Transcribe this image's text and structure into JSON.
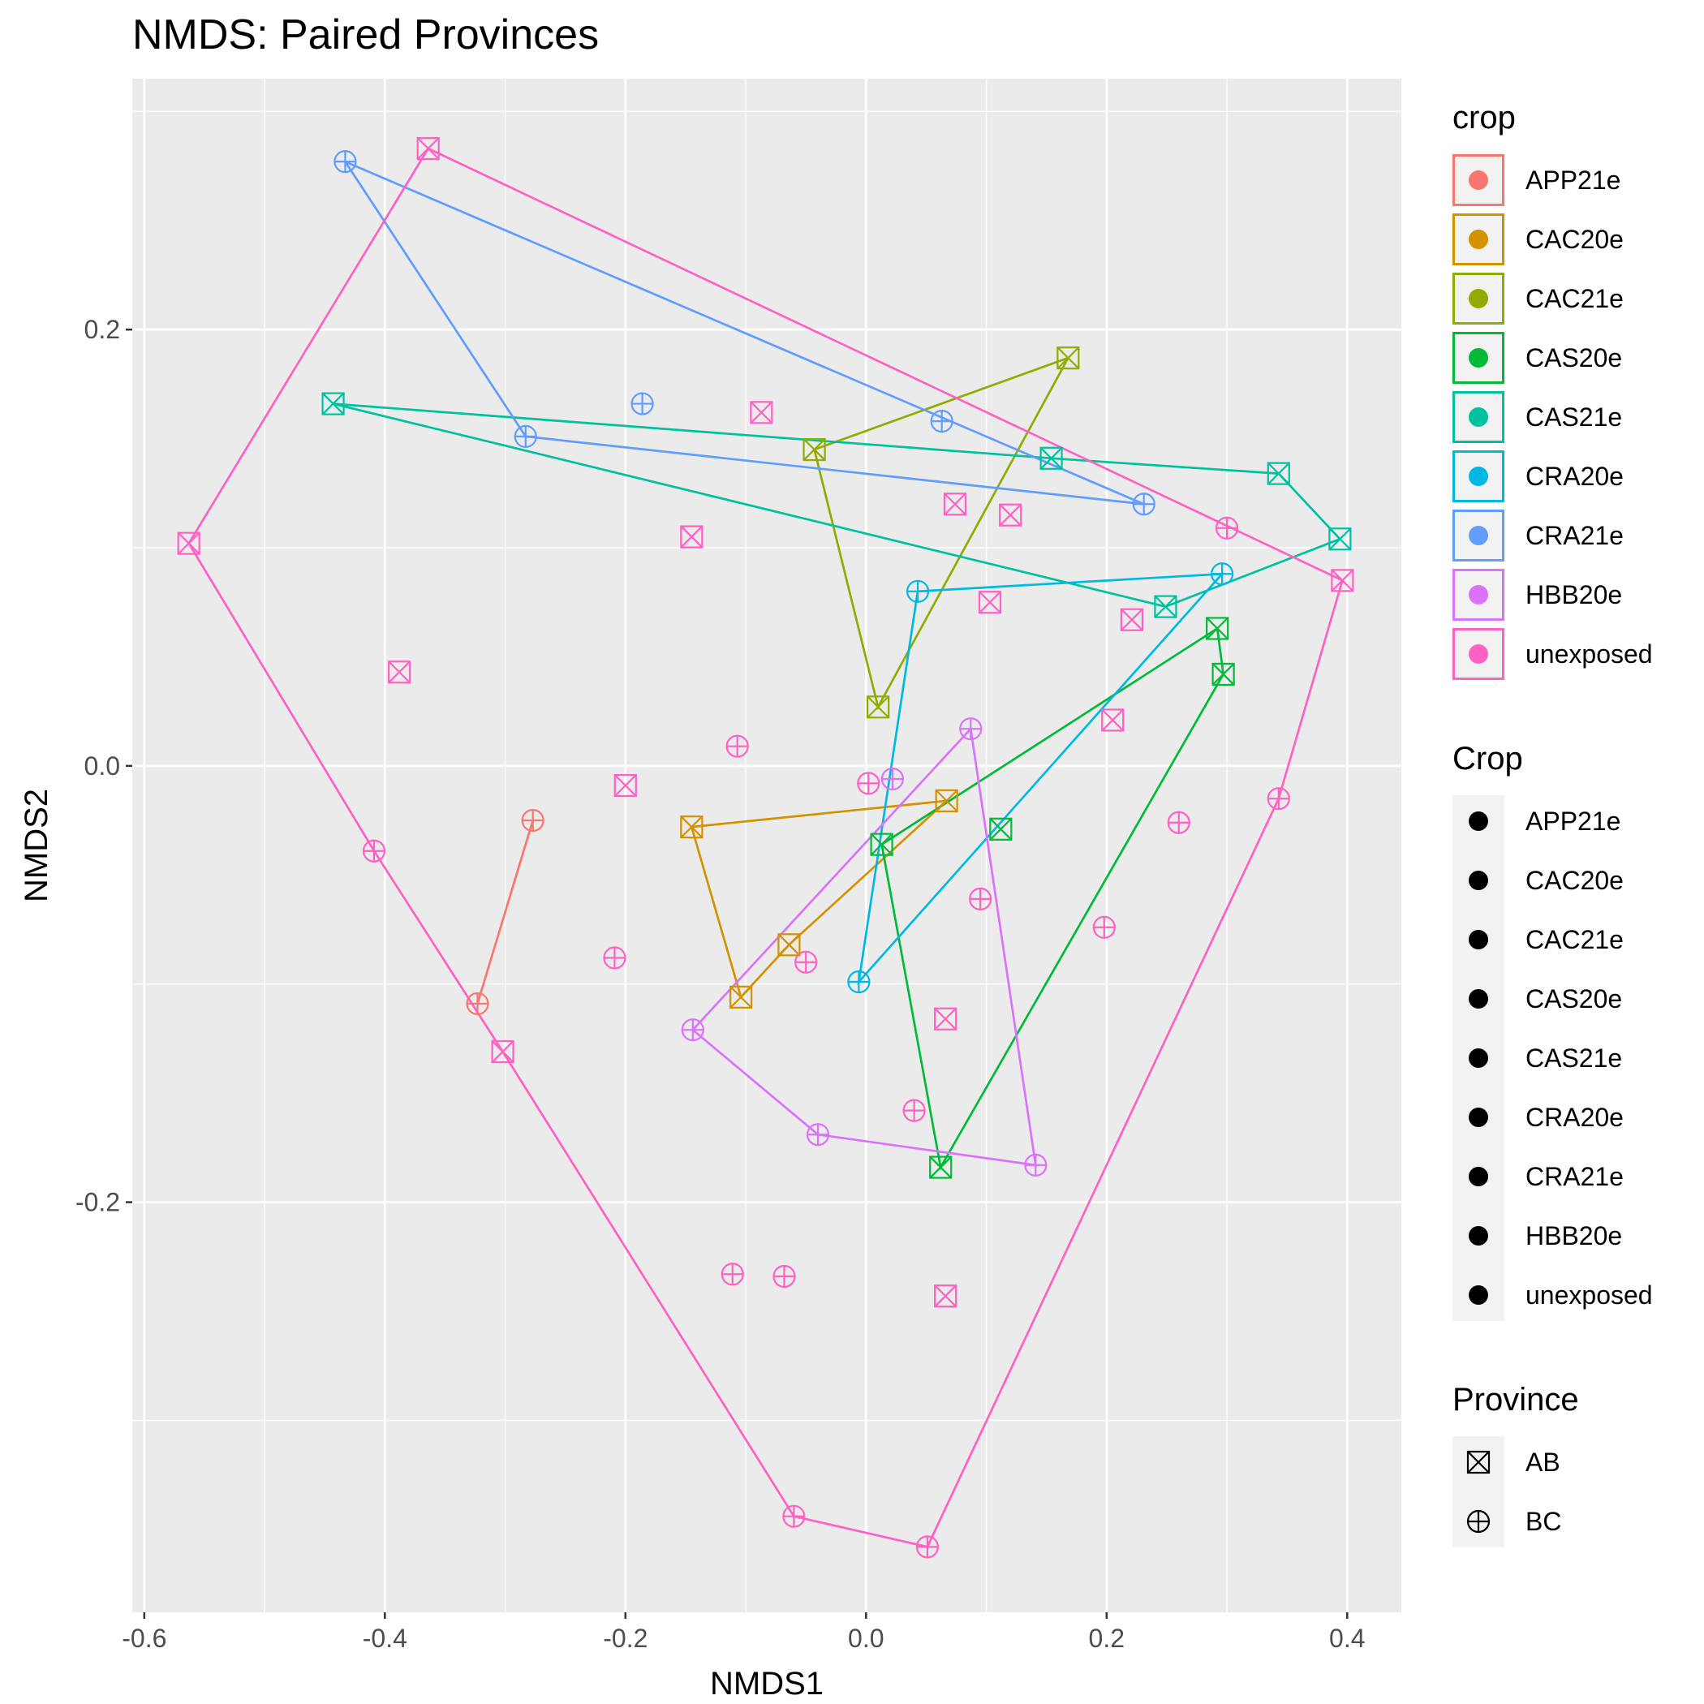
{
  "chart_data": {
    "type": "scatter",
    "title": "NMDS: Paired Provinces",
    "xlabel": "NMDS1",
    "ylabel": "NMDS2",
    "xlim": [
      -0.61,
      0.445
    ],
    "ylim": [
      -0.388,
      0.315
    ],
    "x_ticks": [
      -0.6,
      -0.4,
      -0.2,
      0.0,
      0.2,
      0.4
    ],
    "x_tick_labels": [
      "-0.6",
      "-0.4",
      "-0.2",
      "0.0",
      "0.2",
      "0.4"
    ],
    "y_ticks": [
      -0.2,
      0.0,
      0.2
    ],
    "y_tick_labels": [
      "-0.2",
      "0.0",
      "0.2"
    ],
    "grid": true,
    "legend_position": "right",
    "colors": {
      "APP21e": "#F8766D",
      "CAC20e": "#D39200",
      "CAC21e": "#93AA00",
      "CAS20e": "#00BA38",
      "CAS21e": "#00C19F",
      "CRA20e": "#00B9E3",
      "CRA21e": "#619CFF",
      "HBB20e": "#DB72FB",
      "unexposed": "#FF61C3"
    },
    "series": [
      {
        "name": "APP21e",
        "points": [
          {
            "x": -0.277,
            "y": -0.025,
            "province": "BC"
          },
          {
            "x": -0.323,
            "y": -0.109,
            "province": "BC"
          }
        ],
        "hull": [
          [
            -0.277,
            -0.025
          ],
          [
            -0.323,
            -0.109
          ]
        ]
      },
      {
        "name": "CAC20e",
        "points": [
          {
            "x": 0.067,
            "y": -0.016,
            "province": "AB"
          },
          {
            "x": -0.145,
            "y": -0.028,
            "province": "AB"
          },
          {
            "x": -0.104,
            "y": -0.106,
            "province": "AB"
          },
          {
            "x": -0.064,
            "y": -0.082,
            "province": "AB"
          }
        ],
        "hull": [
          [
            0.067,
            -0.016
          ],
          [
            -0.145,
            -0.028
          ],
          [
            -0.104,
            -0.106
          ],
          [
            -0.064,
            -0.082
          ],
          [
            0.067,
            -0.016
          ]
        ]
      },
      {
        "name": "CAC21e",
        "points": [
          {
            "x": -0.043,
            "y": 0.145,
            "province": "AB"
          },
          {
            "x": 0.168,
            "y": 0.187,
            "province": "AB"
          },
          {
            "x": 0.01,
            "y": 0.027,
            "province": "AB"
          }
        ],
        "hull": [
          [
            -0.043,
            0.145
          ],
          [
            0.168,
            0.187
          ],
          [
            0.01,
            0.027
          ],
          [
            -0.043,
            0.145
          ]
        ]
      },
      {
        "name": "CAS20e",
        "points": [
          {
            "x": 0.292,
            "y": 0.063,
            "province": "AB"
          },
          {
            "x": 0.297,
            "y": 0.042,
            "province": "AB"
          },
          {
            "x": 0.062,
            "y": -0.184,
            "province": "AB"
          },
          {
            "x": 0.013,
            "y": -0.036,
            "province": "AB"
          },
          {
            "x": 0.112,
            "y": -0.029,
            "province": "AB"
          }
        ],
        "hull": [
          [
            0.292,
            0.063
          ],
          [
            0.297,
            0.042
          ],
          [
            0.062,
            -0.184
          ],
          [
            0.013,
            -0.036
          ],
          [
            0.292,
            0.063
          ]
        ]
      },
      {
        "name": "CAS21e",
        "points": [
          {
            "x": -0.443,
            "y": 0.166,
            "province": "AB"
          },
          {
            "x": 0.154,
            "y": 0.141,
            "province": "AB"
          },
          {
            "x": 0.343,
            "y": 0.134,
            "province": "AB"
          },
          {
            "x": 0.394,
            "y": 0.104,
            "province": "AB"
          },
          {
            "x": 0.249,
            "y": 0.073,
            "province": "AB"
          }
        ],
        "hull": [
          [
            -0.443,
            0.166
          ],
          [
            0.154,
            0.141
          ],
          [
            0.343,
            0.134
          ],
          [
            0.394,
            0.104
          ],
          [
            0.249,
            0.073
          ],
          [
            -0.443,
            0.166
          ]
        ]
      },
      {
        "name": "CRA20e",
        "points": [
          {
            "x": 0.043,
            "y": 0.08,
            "province": "BC"
          },
          {
            "x": 0.296,
            "y": 0.088,
            "province": "BC"
          },
          {
            "x": -0.006,
            "y": -0.099,
            "province": "BC"
          }
        ],
        "hull": [
          [
            0.043,
            0.08
          ],
          [
            0.296,
            0.088
          ],
          [
            -0.006,
            -0.099
          ],
          [
            0.043,
            0.08
          ]
        ]
      },
      {
        "name": "CRA21e",
        "points": [
          {
            "x": -0.433,
            "y": 0.277,
            "province": "BC"
          },
          {
            "x": 0.231,
            "y": 0.12,
            "province": "BC"
          },
          {
            "x": -0.283,
            "y": 0.151,
            "province": "BC"
          },
          {
            "x": 0.063,
            "y": 0.158,
            "province": "BC"
          },
          {
            "x": -0.186,
            "y": 0.166,
            "province": "BC"
          }
        ],
        "hull": [
          [
            -0.433,
            0.277
          ],
          [
            0.231,
            0.12
          ],
          [
            -0.283,
            0.151
          ],
          [
            -0.433,
            0.277
          ]
        ]
      },
      {
        "name": "HBB20e",
        "points": [
          {
            "x": 0.087,
            "y": 0.017,
            "province": "BC"
          },
          {
            "x": 0.141,
            "y": -0.183,
            "province": "BC"
          },
          {
            "x": -0.04,
            "y": -0.169,
            "province": "BC"
          },
          {
            "x": -0.144,
            "y": -0.121,
            "province": "BC"
          },
          {
            "x": 0.022,
            "y": -0.006,
            "province": "BC"
          }
        ],
        "hull": [
          [
            0.087,
            0.017
          ],
          [
            0.141,
            -0.183
          ],
          [
            -0.04,
            -0.169
          ],
          [
            -0.144,
            -0.121
          ],
          [
            0.087,
            0.017
          ]
        ]
      },
      {
        "name": "unexposed",
        "points": [
          {
            "x": -0.364,
            "y": 0.283,
            "province": "AB"
          },
          {
            "x": 0.396,
            "y": 0.085,
            "province": "AB"
          },
          {
            "x": -0.563,
            "y": 0.102,
            "province": "AB"
          },
          {
            "x": -0.302,
            "y": -0.131,
            "province": "AB"
          },
          {
            "x": -0.087,
            "y": 0.162,
            "province": "AB"
          },
          {
            "x": -0.145,
            "y": 0.105,
            "province": "AB"
          },
          {
            "x": 0.074,
            "y": 0.12,
            "province": "AB"
          },
          {
            "x": 0.12,
            "y": 0.115,
            "province": "AB"
          },
          {
            "x": 0.103,
            "y": 0.075,
            "province": "AB"
          },
          {
            "x": 0.221,
            "y": 0.067,
            "province": "AB"
          },
          {
            "x": -0.388,
            "y": 0.043,
            "province": "AB"
          },
          {
            "x": 0.205,
            "y": 0.021,
            "province": "AB"
          },
          {
            "x": -0.2,
            "y": -0.009,
            "province": "AB"
          },
          {
            "x": 0.066,
            "y": -0.116,
            "province": "AB"
          },
          {
            "x": 0.066,
            "y": -0.243,
            "province": "AB"
          },
          {
            "x": 0.3,
            "y": 0.109,
            "province": "BC"
          },
          {
            "x": -0.107,
            "y": 0.009,
            "province": "BC"
          },
          {
            "x": 0.002,
            "y": -0.008,
            "province": "BC"
          },
          {
            "x": -0.409,
            "y": -0.039,
            "province": "BC"
          },
          {
            "x": 0.26,
            "y": -0.026,
            "province": "BC"
          },
          {
            "x": 0.343,
            "y": -0.015,
            "province": "BC"
          },
          {
            "x": 0.095,
            "y": -0.061,
            "province": "BC"
          },
          {
            "x": 0.198,
            "y": -0.074,
            "province": "BC"
          },
          {
            "x": -0.209,
            "y": -0.088,
            "province": "BC"
          },
          {
            "x": -0.05,
            "y": -0.09,
            "province": "BC"
          },
          {
            "x": 0.04,
            "y": -0.158,
            "province": "BC"
          },
          {
            "x": -0.111,
            "y": -0.233,
            "province": "BC"
          },
          {
            "x": -0.068,
            "y": -0.234,
            "province": "BC"
          },
          {
            "x": -0.06,
            "y": -0.344,
            "province": "BC"
          },
          {
            "x": 0.051,
            "y": -0.358,
            "province": "BC"
          }
        ],
        "hull": [
          [
            -0.364,
            0.283
          ],
          [
            0.396,
            0.085
          ],
          [
            0.343,
            -0.015
          ],
          [
            0.051,
            -0.358
          ],
          [
            -0.06,
            -0.344
          ],
          [
            -0.302,
            -0.131
          ],
          [
            -0.409,
            -0.039
          ],
          [
            -0.563,
            0.102
          ],
          [
            -0.364,
            0.283
          ]
        ]
      }
    ],
    "legends": [
      {
        "title": "crop",
        "style": "filled-circle-with-color-box",
        "items": [
          "APP21e",
          "CAC20e",
          "CAC21e",
          "CAS20e",
          "CAS21e",
          "CRA20e",
          "CRA21e",
          "HBB20e",
          "unexposed"
        ]
      },
      {
        "title": "Crop",
        "style": "black-dot",
        "items": [
          "APP21e",
          "CAC20e",
          "CAC21e",
          "CAS20e",
          "CAS21e",
          "CRA20e",
          "CRA21e",
          "HBB20e",
          "unexposed"
        ]
      },
      {
        "title": "Province",
        "style": "shape",
        "items": [
          {
            "label": "AB",
            "shape": "square-cross"
          },
          {
            "label": "BC",
            "shape": "circle-plus"
          }
        ]
      }
    ]
  }
}
